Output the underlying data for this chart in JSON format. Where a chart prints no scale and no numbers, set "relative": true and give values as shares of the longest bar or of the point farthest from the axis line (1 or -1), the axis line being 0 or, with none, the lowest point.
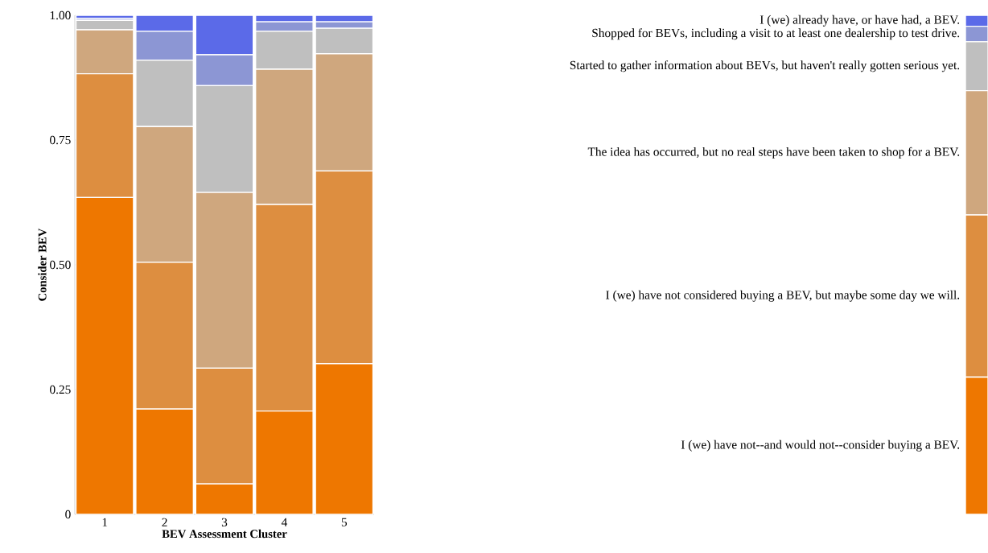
{
  "chart_data": [
    {
      "type": "bar",
      "stacked": true,
      "xlabel": "BEV Assessment Cluster",
      "ylabel": "Consider BEV",
      "categories": [
        "1",
        "2",
        "3",
        "4",
        "5"
      ],
      "ylim": [
        0,
        1
      ],
      "yticks": [
        0,
        0.25,
        {
          "value": 0.5,
          "label": "0.50"
        },
        {
          "value": 0.75,
          "label": "0.75"
        },
        {
          "value": 1,
          "label": "1.00"
        }
      ],
      "series": [
        {
          "color": "#ee7700",
          "values": [
            0.635,
            0.211,
            0.061,
            0.207,
            0.302
          ]
        },
        {
          "color": "#dd8e40",
          "values": [
            0.248,
            0.294,
            0.232,
            0.414,
            0.386
          ]
        },
        {
          "color": "#cfa77e",
          "values": [
            0.088,
            0.272,
            0.352,
            0.271,
            0.235
          ]
        },
        {
          "color": "#bfbfbf",
          "values": [
            0.019,
            0.133,
            0.214,
            0.076,
            0.051
          ]
        },
        {
          "color": "#8c96d4",
          "values": [
            0.004,
            0.058,
            0.062,
            0.019,
            0.013
          ]
        },
        {
          "color": "#5b6ae8",
          "values": [
            0.006,
            0.032,
            0.079,
            0.013,
            0.013
          ]
        }
      ]
    },
    {
      "type": "bar",
      "stacked": true,
      "relative": true,
      "categories": [
        null
      ],
      "series": [
        {
          "name": "I (we) have not--and would not--consider buying a BEV.",
          "color": "#ee7700",
          "values": [
            0.275
          ]
        },
        {
          "name": "I (we) have not considered buying a BEV, but maybe some day we will.",
          "color": "#dd8e40",
          "values": [
            0.325
          ]
        },
        {
          "name": "The idea has occurred, but no real steps have been taken to shop for a BEV.",
          "color": "#cfa77e",
          "values": [
            0.249
          ]
        },
        {
          "name": "Started to gather information about BEVs, but haven't really gotten serious yet.",
          "color": "#bfbfbf",
          "values": [
            0.098
          ]
        },
        {
          "name": "Shopped for BEVs, including a visit to at least one dealership to test drive.",
          "color": "#8c96d4",
          "values": [
            0.031
          ]
        },
        {
          "name": "I (we) already have, or have had, a BEV.",
          "color": "#5b6ae8",
          "values": [
            0.022
          ]
        }
      ]
    }
  ]
}
